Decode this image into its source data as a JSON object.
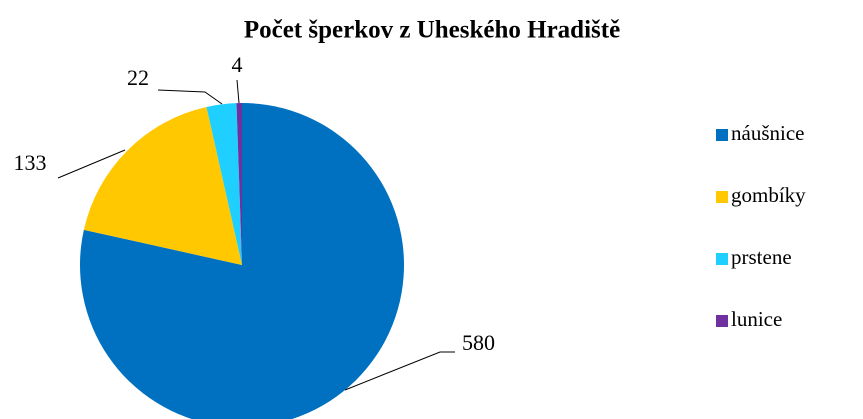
{
  "chart_data": {
    "type": "pie",
    "title": "Počet šperkov z Uheského Hradiště",
    "categories": [
      "náušnice",
      "gombíky",
      "prstene",
      "lunice"
    ],
    "values": [
      580,
      133,
      22,
      4
    ],
    "colors": [
      "#0070c0",
      "#ffc800",
      "#1fcfff",
      "#7030a0"
    ],
    "legend": "right"
  }
}
